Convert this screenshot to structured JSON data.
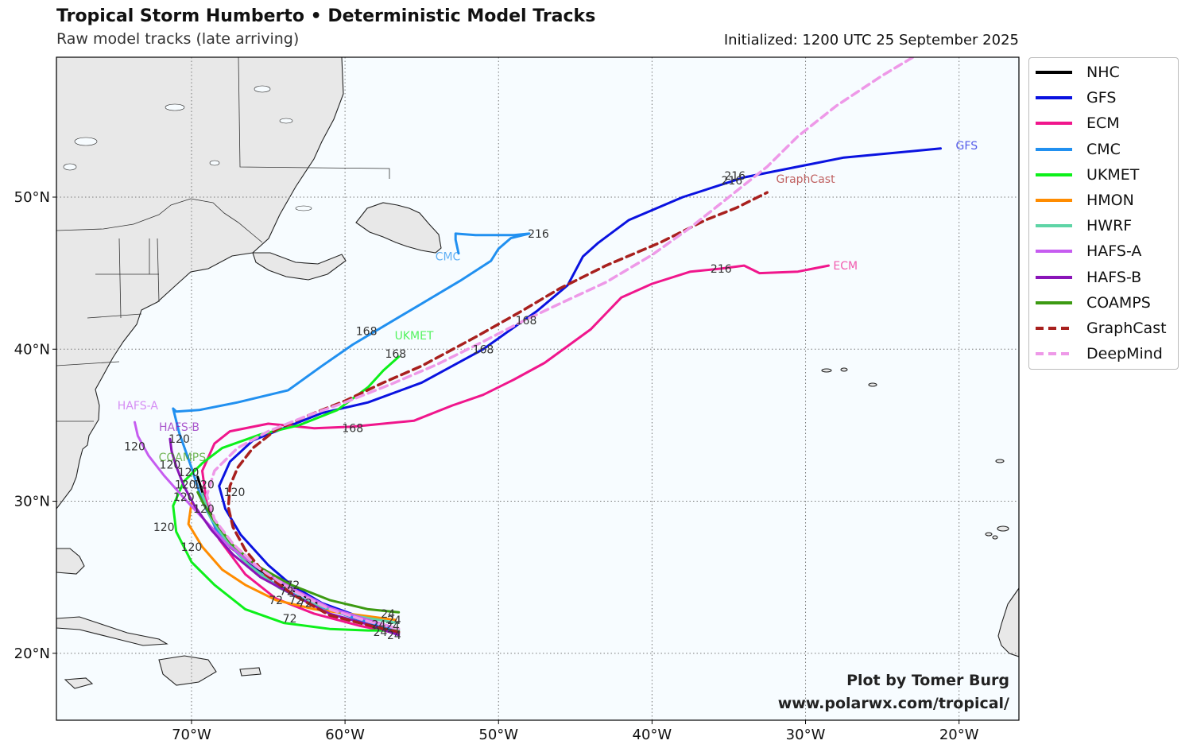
{
  "header": {
    "title": "Tropical Storm Humberto • Deterministic Model Tracks",
    "subtitle": "Raw model tracks (late arriving)",
    "initialized": "Initialized: 1200 UTC 25 September 2025"
  },
  "credit": {
    "line1": "Plot by Tomer Burg",
    "line2": "www.polarwx.com/tropical/"
  },
  "colors": {
    "ocean": "#f7fcff",
    "land": "#e8e8e8",
    "coast": "#222222",
    "grid": "#777777"
  },
  "map": {
    "lon_range": [
      -78.8,
      -16.1
    ],
    "lat_range": [
      15.6,
      59.2
    ],
    "lon_ticks": [
      {
        "value": -70,
        "label": "70°W"
      },
      {
        "value": -60,
        "label": "60°W"
      },
      {
        "value": -50,
        "label": "50°W"
      },
      {
        "value": -40,
        "label": "40°W"
      },
      {
        "value": -30,
        "label": "30°W"
      },
      {
        "value": -20,
        "label": "20°W"
      }
    ],
    "lat_ticks": [
      {
        "value": 20,
        "label": "20°N"
      },
      {
        "value": 30,
        "label": "30°N"
      },
      {
        "value": 40,
        "label": "40°N"
      },
      {
        "value": 50,
        "label": "50°N"
      }
    ]
  },
  "legend": [
    {
      "name": "NHC",
      "color": "#000000",
      "dash": false
    },
    {
      "name": "GFS",
      "color": "#0a12e0",
      "dash": false
    },
    {
      "name": "ECM",
      "color": "#f0168c",
      "dash": false
    },
    {
      "name": "CMC",
      "color": "#2190f0",
      "dash": false
    },
    {
      "name": "UKMET",
      "color": "#0df01a",
      "dash": false
    },
    {
      "name": "HMON",
      "color": "#ff8c00",
      "dash": false
    },
    {
      "name": "HWRF",
      "color": "#5ed4a6",
      "dash": false
    },
    {
      "name": "HAFS-A",
      "color": "#c65cf0",
      "dash": false
    },
    {
      "name": "HAFS-B",
      "color": "#8a14b8",
      "dash": false
    },
    {
      "name": "COAMPS",
      "color": "#3c9a12",
      "dash": false
    },
    {
      "name": "GraphCast",
      "color": "#a8201e",
      "dash": true
    },
    {
      "name": "DeepMind",
      "color": "#ee99e8",
      "dash": true
    }
  ],
  "chart_data": {
    "type": "map-tracks",
    "tracks": [
      {
        "name": "NHC",
        "points": [
          [
            -56.5,
            21.3
          ],
          [
            -58.5,
            22.0
          ],
          [
            -61,
            22.9
          ],
          [
            -63.5,
            24.2
          ],
          [
            -65.6,
            25.5
          ],
          [
            -67.5,
            27.0
          ],
          [
            -68.5,
            28.6
          ],
          [
            -69.2,
            30.3
          ],
          [
            -69.6,
            31.6
          ]
        ]
      },
      {
        "name": "GFS",
        "label": "GFS",
        "points": [
          [
            -56.5,
            21.3
          ],
          [
            -58.5,
            22.2
          ],
          [
            -61.5,
            23.3
          ],
          [
            -63.5,
            24.5
          ],
          [
            -65,
            25.8
          ],
          [
            -66.8,
            27.8
          ],
          [
            -67.8,
            29.5
          ],
          [
            -68.2,
            31.0
          ],
          [
            -67.5,
            32.6
          ],
          [
            -66.0,
            34.0
          ],
          [
            -63.5,
            35.0
          ],
          [
            -61.5,
            35.8
          ],
          [
            -58.5,
            36.5
          ],
          [
            -55,
            37.8
          ],
          [
            -51,
            40.0
          ],
          [
            -47.5,
            42.5
          ],
          [
            -45.5,
            44.2
          ],
          [
            -44.5,
            46.1
          ],
          [
            -43.5,
            47.0
          ],
          [
            -41.5,
            48.5
          ],
          [
            -38,
            50.0
          ],
          [
            -34,
            51.3
          ],
          [
            -27.5,
            52.6
          ],
          [
            -21.2,
            53.2
          ]
        ],
        "labels": [
          {
            "text": "168",
            "lon": -51,
            "lat": 40.0
          },
          {
            "text": "216",
            "lon": -34.8,
            "lat": 51.1
          }
        ]
      },
      {
        "name": "ECM",
        "label": "ECM",
        "points": [
          [
            -56.5,
            21.3
          ],
          [
            -59.0,
            21.8
          ],
          [
            -62,
            22.6
          ],
          [
            -64.5,
            23.6
          ],
          [
            -66.5,
            25.2
          ],
          [
            -68.2,
            27.5
          ],
          [
            -69.0,
            29.8
          ],
          [
            -69.3,
            32.0
          ],
          [
            -68.5,
            33.8
          ],
          [
            -67.5,
            34.6
          ],
          [
            -65,
            35.1
          ],
          [
            -62,
            34.8
          ],
          [
            -59.5,
            34.9
          ],
          [
            -55.5,
            35.3
          ],
          [
            -53,
            36.3
          ],
          [
            -51,
            37.0
          ],
          [
            -49,
            38.0
          ],
          [
            -47,
            39.1
          ],
          [
            -44,
            41.3
          ],
          [
            -42,
            43.4
          ],
          [
            -40,
            44.3
          ],
          [
            -37.5,
            45.1
          ],
          [
            -35.5,
            45.3
          ],
          [
            -34,
            45.5
          ],
          [
            -33,
            45.0
          ],
          [
            -30.5,
            45.1
          ],
          [
            -28.5,
            45.5
          ]
        ],
        "labels": [
          {
            "text": "168",
            "lon": -59.5,
            "lat": 34.8
          },
          {
            "text": "216",
            "lon": -35.5,
            "lat": 45.3
          }
        ]
      },
      {
        "name": "CMC",
        "label": "CMC",
        "points": [
          [
            -56.5,
            21.5
          ],
          [
            -59,
            22.2
          ],
          [
            -62,
            23.2
          ],
          [
            -64.5,
            24.5
          ],
          [
            -66.5,
            26.0
          ],
          [
            -68.3,
            28.0
          ],
          [
            -69.3,
            30.0
          ],
          [
            -70.0,
            32.2
          ],
          [
            -70.8,
            34.5
          ],
          [
            -71.2,
            36.1
          ],
          [
            -71.0,
            35.9
          ],
          [
            -69.5,
            36.0
          ],
          [
            -67,
            36.5
          ],
          [
            -63.7,
            37.3
          ],
          [
            -61.5,
            38.9
          ],
          [
            -59.5,
            40.3
          ],
          [
            -57.5,
            41.5
          ],
          [
            -55,
            43.0
          ],
          [
            -52.5,
            44.5
          ],
          [
            -50.5,
            45.8
          ],
          [
            -50.0,
            46.6
          ],
          [
            -49.2,
            47.3
          ],
          [
            -48,
            47.6
          ],
          [
            -49,
            47.5
          ],
          [
            -50,
            47.5
          ],
          [
            -51.5,
            47.5
          ],
          [
            -52.8,
            47.6
          ],
          [
            -52.8,
            47.2
          ],
          [
            -52.6,
            46.3
          ]
        ],
        "labels": [
          {
            "text": "168",
            "lon": -58.6,
            "lat": 41.2
          },
          {
            "text": "216",
            "lon": -47.4,
            "lat": 47.6
          }
        ]
      },
      {
        "name": "UKMET",
        "label": "UKMET",
        "points": [
          [
            -56.5,
            21.5
          ],
          [
            -58.5,
            21.5
          ],
          [
            -61,
            21.6
          ],
          [
            -64,
            22.0
          ],
          [
            -66.5,
            22.9
          ],
          [
            -68.5,
            24.5
          ],
          [
            -70,
            26.0
          ],
          [
            -71.0,
            28.0
          ],
          [
            -71.2,
            29.7
          ],
          [
            -70.5,
            31.3
          ],
          [
            -69.3,
            32.5
          ],
          [
            -68,
            33.5
          ],
          [
            -65.5,
            34.4
          ],
          [
            -63,
            35.0
          ],
          [
            -60.5,
            36.0
          ],
          [
            -58.5,
            37.5
          ],
          [
            -57.5,
            38.6
          ],
          [
            -56.5,
            39.5
          ]
        ],
        "labels": [
          {
            "text": "168",
            "lon": -56.7,
            "lat": 39.7
          }
        ]
      },
      {
        "name": "HMON",
        "points": [
          [
            -56.7,
            22.2
          ],
          [
            -59,
            22.5
          ],
          [
            -62,
            22.9
          ],
          [
            -64.5,
            23.5
          ],
          [
            -66.5,
            24.5
          ],
          [
            -68.0,
            25.5
          ],
          [
            -69.3,
            27.0
          ],
          [
            -70.2,
            28.5
          ],
          [
            -70.0,
            29.9
          ]
        ]
      },
      {
        "name": "HWRF",
        "points": [
          [
            -56.6,
            22.0
          ],
          [
            -59,
            22.4
          ],
          [
            -62,
            23.2
          ],
          [
            -64.3,
            24.3
          ],
          [
            -66.3,
            25.8
          ],
          [
            -67.8,
            27.5
          ],
          [
            -68.8,
            29.0
          ],
          [
            -69.3,
            30.5
          ]
        ]
      },
      {
        "name": "HAFS-A",
        "label": "HAFS-A",
        "points": [
          [
            -56.5,
            21.6
          ],
          [
            -58.5,
            22.2
          ],
          [
            -61,
            23.0
          ],
          [
            -63.5,
            24.3
          ],
          [
            -65.8,
            25.7
          ],
          [
            -67.6,
            27.1
          ],
          [
            -69,
            28.6
          ],
          [
            -70.3,
            30.0
          ],
          [
            -71.8,
            31.7
          ],
          [
            -72.8,
            33.0
          ],
          [
            -73.5,
            34.3
          ],
          [
            -73.7,
            35.2
          ]
        ]
      },
      {
        "name": "HAFS-B",
        "label": "HAFS-B",
        "points": [
          [
            -56.5,
            21.2
          ],
          [
            -58.5,
            21.9
          ],
          [
            -61,
            22.6
          ],
          [
            -63.3,
            23.8
          ],
          [
            -65.5,
            25.0
          ],
          [
            -67.3,
            26.5
          ],
          [
            -68.7,
            28.1
          ],
          [
            -69.8,
            29.7
          ],
          [
            -70.5,
            31.0
          ],
          [
            -71.0,
            32.3
          ],
          [
            -71.3,
            33.3
          ],
          [
            -71.4,
            34.1
          ]
        ]
      },
      {
        "name": "COAMPS",
        "label": "COAMPS",
        "points": [
          [
            -56.5,
            22.7
          ],
          [
            -58.5,
            22.9
          ],
          [
            -61,
            23.5
          ],
          [
            -63.5,
            24.5
          ],
          [
            -65.8,
            25.8
          ],
          [
            -67.4,
            27.2
          ],
          [
            -68.5,
            28.7
          ],
          [
            -69.2,
            29.8
          ],
          [
            -69.6,
            30.6
          ]
        ]
      },
      {
        "name": "GraphCast",
        "label": "GraphCast",
        "points": [
          [
            -56.5,
            21.4
          ],
          [
            -58.3,
            21.8
          ],
          [
            -61,
            22.5
          ],
          [
            -63.3,
            23.8
          ],
          [
            -65.2,
            25.2
          ],
          [
            -66.5,
            26.8
          ],
          [
            -67.3,
            28.3
          ],
          [
            -67.6,
            29.6
          ],
          [
            -67.5,
            31.0
          ],
          [
            -67.0,
            32.2
          ],
          [
            -66.0,
            33.5
          ],
          [
            -64.5,
            34.7
          ],
          [
            -62.5,
            35.6
          ],
          [
            -60,
            36.6
          ],
          [
            -57.5,
            37.8
          ],
          [
            -55,
            38.9
          ],
          [
            -51.5,
            40.8
          ],
          [
            -48.5,
            42.5
          ],
          [
            -46,
            44.0
          ],
          [
            -43,
            45.5
          ],
          [
            -39.5,
            47.0
          ],
          [
            -36.5,
            48.5
          ],
          [
            -34.5,
            49.3
          ],
          [
            -32.5,
            50.3
          ]
        ],
        "labels": [
          {
            "text": "216",
            "lon": -34.6,
            "lat": 51.4
          }
        ]
      },
      {
        "name": "DeepMind",
        "label": "DeepMind",
        "points": [
          [
            -56.5,
            21.6
          ],
          [
            -58.5,
            22.1
          ],
          [
            -61,
            22.9
          ],
          [
            -63.5,
            24.2
          ],
          [
            -65.6,
            25.6
          ],
          [
            -67.3,
            27.2
          ],
          [
            -68.5,
            28.8
          ],
          [
            -69.0,
            30.4
          ],
          [
            -68.5,
            32.0
          ],
          [
            -67.0,
            33.5
          ],
          [
            -65,
            34.6
          ],
          [
            -62.5,
            35.6
          ],
          [
            -60,
            36.5
          ],
          [
            -57,
            37.7
          ],
          [
            -54,
            39.0
          ],
          [
            -51,
            40.5
          ],
          [
            -48.5,
            41.8
          ],
          [
            -46,
            43.0
          ],
          [
            -43,
            44.4
          ],
          [
            -40,
            46.2
          ],
          [
            -37.5,
            48.0
          ],
          [
            -35,
            50.0
          ],
          [
            -32.5,
            52.0
          ],
          [
            -30.5,
            54.0
          ],
          [
            -28,
            56.0
          ],
          [
            -25,
            58.0
          ],
          [
            -23,
            59.2
          ]
        ],
        "labels": [
          {
            "text": "168",
            "lon": -48.2,
            "lat": 41.9
          }
        ]
      }
    ],
    "model_name_labels": [
      {
        "text": "GFS",
        "lon": -19.5,
        "lat": 53.4,
        "model": "GFS"
      },
      {
        "text": "GraphCast",
        "lon": -30.0,
        "lat": 51.2,
        "model": "GraphCast"
      },
      {
        "text": "ECM",
        "lon": -27.4,
        "lat": 45.5,
        "model": "ECM"
      },
      {
        "text": "CMC",
        "lon": -53.3,
        "lat": 46.1,
        "model": "CMC"
      },
      {
        "text": "UKMET",
        "lon": -55.5,
        "lat": 40.9,
        "model": "UKMET"
      },
      {
        "text": "HAFS-A",
        "lon": -73.5,
        "lat": 36.3,
        "model": "HAFS-A"
      },
      {
        "text": "HAFS-B",
        "lon": -70.8,
        "lat": 34.9,
        "model": "HAFS-B"
      },
      {
        "text": "COAMPS",
        "lon": -70.6,
        "lat": 32.9,
        "model": "COAMPS"
      }
    ],
    "hour_labels": [
      {
        "text": "120",
        "lon": -70.8,
        "lat": 34.1
      },
      {
        "text": "120",
        "lon": -73.7,
        "lat": 33.6
      },
      {
        "text": "120",
        "lon": -71.4,
        "lat": 32.4
      },
      {
        "text": "120",
        "lon": -70.2,
        "lat": 31.9
      },
      {
        "text": "120",
        "lon": -70.4,
        "lat": 31.1
      },
      {
        "text": "120",
        "lon": -69.2,
        "lat": 31.1
      },
      {
        "text": "120",
        "lon": -67.2,
        "lat": 30.6
      },
      {
        "text": "120",
        "lon": -70.5,
        "lat": 30.3
      },
      {
        "text": "120",
        "lon": -69.2,
        "lat": 29.5
      },
      {
        "text": "120",
        "lon": -71.8,
        "lat": 28.3
      },
      {
        "text": "120",
        "lon": -70.0,
        "lat": 27.0
      },
      {
        "text": "72",
        "lon": -63.4,
        "lat": 24.5
      },
      {
        "text": "72",
        "lon": -63.8,
        "lat": 24.1
      },
      {
        "text": "72",
        "lon": -64.5,
        "lat": 23.5
      },
      {
        "text": "72",
        "lon": -63.2,
        "lat": 23.5
      },
      {
        "text": "72",
        "lon": -62.6,
        "lat": 23.3
      },
      {
        "text": "72",
        "lon": -63.6,
        "lat": 22.3
      },
      {
        "text": "24",
        "lon": -57.2,
        "lat": 22.6
      },
      {
        "text": "24",
        "lon": -56.8,
        "lat": 22.2
      },
      {
        "text": "24",
        "lon": -57.8,
        "lat": 21.9
      },
      {
        "text": "24",
        "lon": -56.9,
        "lat": 21.8
      },
      {
        "text": "24",
        "lon": -57.7,
        "lat": 21.4
      },
      {
        "text": "24",
        "lon": -56.8,
        "lat": 21.2
      }
    ]
  }
}
